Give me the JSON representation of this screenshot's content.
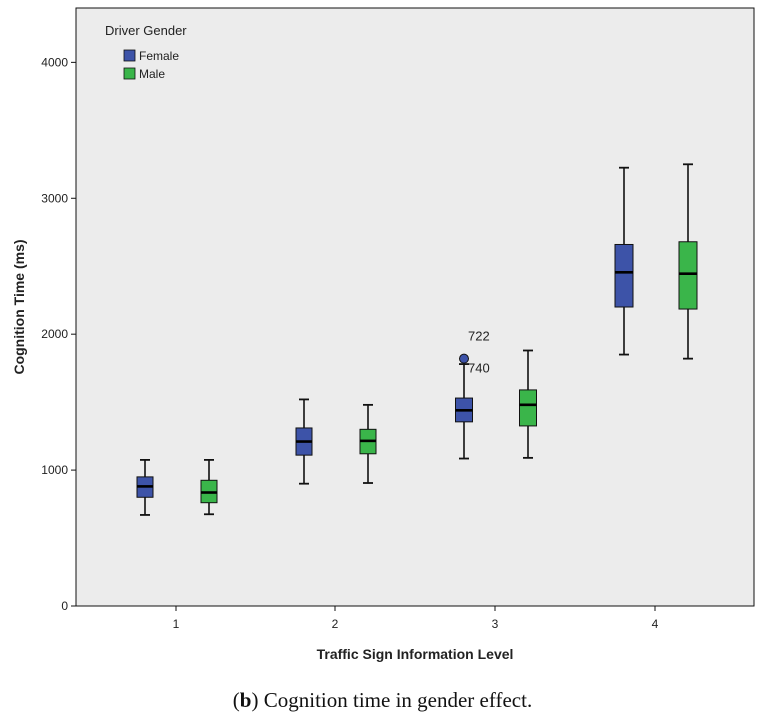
{
  "chart_data": {
    "type": "boxplot",
    "title": "",
    "xlabel": "Traffic Sign Information Level",
    "ylabel": "Cognition Time (ms)",
    "ylim": [
      0,
      4400
    ],
    "yticks": [
      0,
      1000,
      2000,
      3000,
      4000
    ],
    "categories": [
      "1",
      "2",
      "3",
      "4"
    ],
    "legend": {
      "title": "Driver Gender",
      "position": "top-left"
    },
    "background": "#ececec",
    "series": [
      {
        "name": "Female",
        "color": "#3d53a8",
        "boxes": [
          {
            "category": "1",
            "min": 670,
            "q1": 800,
            "median": 880,
            "q3": 950,
            "max": 1075,
            "outliers": []
          },
          {
            "category": "2",
            "min": 900,
            "q1": 1110,
            "median": 1210,
            "q3": 1310,
            "max": 1520,
            "outliers": []
          },
          {
            "category": "3",
            "min": 1085,
            "q1": 1355,
            "median": 1440,
            "q3": 1530,
            "max": 1780,
            "outliers": [
              {
                "value": 1820,
                "label": "722"
              },
              {
                "label": "740"
              }
            ]
          },
          {
            "category": "4",
            "min": 1850,
            "q1": 2200,
            "median": 2455,
            "q3": 2660,
            "max": 3225,
            "outliers": []
          }
        ]
      },
      {
        "name": "Male",
        "color": "#3ab54a",
        "boxes": [
          {
            "category": "1",
            "min": 675,
            "q1": 760,
            "median": 835,
            "q3": 925,
            "max": 1075,
            "outliers": []
          },
          {
            "category": "2",
            "min": 905,
            "q1": 1120,
            "median": 1215,
            "q3": 1300,
            "max": 1480,
            "outliers": []
          },
          {
            "category": "3",
            "min": 1090,
            "q1": 1325,
            "median": 1480,
            "q3": 1590,
            "max": 1880,
            "outliers": []
          },
          {
            "category": "4",
            "min": 1820,
            "q1": 2185,
            "median": 2445,
            "q3": 2680,
            "max": 3250,
            "outliers": []
          }
        ]
      }
    ]
  },
  "caption": {
    "label": "b",
    "text": " Cognition time in gender effect."
  }
}
